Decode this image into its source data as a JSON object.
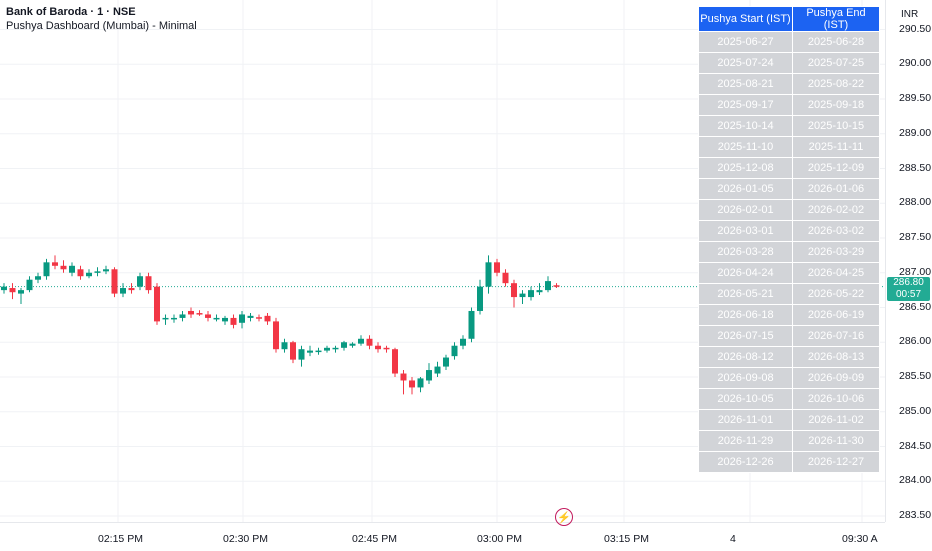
{
  "legend": {
    "symbol": "Bank of Baroda · 1 · NSE",
    "indicator": "Pushya Dashboard (Mumbai) - Minimal"
  },
  "price_axis": {
    "currency": "INR",
    "ticks": [
      "290.50",
      "290.00",
      "289.50",
      "289.00",
      "288.50",
      "288.00",
      "287.50",
      "287.00",
      "286.50",
      "286.00",
      "285.50",
      "285.00",
      "284.50",
      "284.00",
      "283.50"
    ],
    "last_price": "286.80",
    "countdown": "00:57"
  },
  "time_axis": {
    "ticks": [
      "02:15 PM",
      "02:30 PM",
      "02:45 PM",
      "03:00 PM",
      "03:15 PM",
      "4",
      "09:30 A"
    ]
  },
  "table": {
    "headers": [
      "Pushya Start (IST)",
      "Pushya End (IST)"
    ],
    "rows": [
      [
        "2025-06-27",
        "2025-06-28"
      ],
      [
        "2025-07-24",
        "2025-07-25"
      ],
      [
        "2025-08-21",
        "2025-08-22"
      ],
      [
        "2025-09-17",
        "2025-09-18"
      ],
      [
        "2025-10-14",
        "2025-10-15"
      ],
      [
        "2025-11-10",
        "2025-11-11"
      ],
      [
        "2025-12-08",
        "2025-12-09"
      ],
      [
        "2026-01-05",
        "2026-01-06"
      ],
      [
        "2026-02-01",
        "2026-02-02"
      ],
      [
        "2026-03-01",
        "2026-03-02"
      ],
      [
        "2026-03-28",
        "2026-03-29"
      ],
      [
        "2026-04-24",
        "2026-04-25"
      ],
      [
        "2026-05-21",
        "2026-05-22"
      ],
      [
        "2026-06-18",
        "2026-06-19"
      ],
      [
        "2026-07-15",
        "2026-07-16"
      ],
      [
        "2026-08-12",
        "2026-08-13"
      ],
      [
        "2026-09-08",
        "2026-09-09"
      ],
      [
        "2026-10-05",
        "2026-10-06"
      ],
      [
        "2026-11-01",
        "2026-11-02"
      ],
      [
        "2026-11-29",
        "2026-11-30"
      ],
      [
        "2026-12-26",
        "2026-12-27"
      ]
    ]
  },
  "colors": {
    "up": "#089981",
    "down": "#f23645",
    "last_price": "#22ab94",
    "table_header": "#1c63f2",
    "table_cell": "#d2d4d8"
  },
  "icons": {
    "replay": "lightning-icon"
  },
  "chart_data": {
    "type": "candlestick",
    "last_price": 286.8,
    "candles": [
      {
        "o": 286.75,
        "h": 286.85,
        "l": 286.7,
        "c": 286.8
      },
      {
        "o": 286.78,
        "h": 286.85,
        "l": 286.62,
        "c": 286.72
      },
      {
        "o": 286.7,
        "h": 286.78,
        "l": 286.55,
        "c": 286.75
      },
      {
        "o": 286.75,
        "h": 286.95,
        "l": 286.72,
        "c": 286.9
      },
      {
        "o": 286.9,
        "h": 287.0,
        "l": 286.85,
        "c": 286.95
      },
      {
        "o": 286.95,
        "h": 287.2,
        "l": 286.9,
        "c": 287.15
      },
      {
        "o": 287.15,
        "h": 287.25,
        "l": 287.05,
        "c": 287.1
      },
      {
        "o": 287.1,
        "h": 287.18,
        "l": 287.0,
        "c": 287.05
      },
      {
        "o": 287.0,
        "h": 287.15,
        "l": 286.95,
        "c": 287.1
      },
      {
        "o": 287.05,
        "h": 287.1,
        "l": 286.9,
        "c": 286.95
      },
      {
        "o": 286.95,
        "h": 287.05,
        "l": 286.92,
        "c": 287.0
      },
      {
        "o": 287.0,
        "h": 287.08,
        "l": 286.95,
        "c": 287.02
      },
      {
        "o": 287.02,
        "h": 287.1,
        "l": 286.98,
        "c": 287.05
      },
      {
        "o": 287.05,
        "h": 287.08,
        "l": 286.65,
        "c": 286.7
      },
      {
        "o": 286.7,
        "h": 286.85,
        "l": 286.65,
        "c": 286.78
      },
      {
        "o": 286.78,
        "h": 286.85,
        "l": 286.7,
        "c": 286.75
      },
      {
        "o": 286.8,
        "h": 287.0,
        "l": 286.75,
        "c": 286.95
      },
      {
        "o": 286.95,
        "h": 287.0,
        "l": 286.7,
        "c": 286.75
      },
      {
        "o": 286.8,
        "h": 286.85,
        "l": 286.25,
        "c": 286.3
      },
      {
        "o": 286.35,
        "h": 286.4,
        "l": 286.25,
        "c": 286.35
      },
      {
        "o": 286.35,
        "h": 286.4,
        "l": 286.28,
        "c": 286.35
      },
      {
        "o": 286.35,
        "h": 286.45,
        "l": 286.3,
        "c": 286.4
      },
      {
        "o": 286.45,
        "h": 286.5,
        "l": 286.35,
        "c": 286.4
      },
      {
        "o": 286.42,
        "h": 286.46,
        "l": 286.38,
        "c": 286.4
      },
      {
        "o": 286.4,
        "h": 286.45,
        "l": 286.3,
        "c": 286.35
      },
      {
        "o": 286.35,
        "h": 286.4,
        "l": 286.3,
        "c": 286.35
      },
      {
        "o": 286.3,
        "h": 286.38,
        "l": 286.25,
        "c": 286.35
      },
      {
        "o": 286.35,
        "h": 286.4,
        "l": 286.2,
        "c": 286.25
      },
      {
        "o": 286.28,
        "h": 286.45,
        "l": 286.2,
        "c": 286.4
      },
      {
        "o": 286.35,
        "h": 286.42,
        "l": 286.3,
        "c": 286.38
      },
      {
        "o": 286.36,
        "h": 286.4,
        "l": 286.3,
        "c": 286.35
      },
      {
        "o": 286.38,
        "h": 286.42,
        "l": 286.25,
        "c": 286.3
      },
      {
        "o": 286.3,
        "h": 286.35,
        "l": 285.85,
        "c": 285.9
      },
      {
        "o": 285.9,
        "h": 286.05,
        "l": 285.85,
        "c": 286.0
      },
      {
        "o": 286.0,
        "h": 286.02,
        "l": 285.7,
        "c": 285.75
      },
      {
        "o": 285.75,
        "h": 285.95,
        "l": 285.65,
        "c": 285.9
      },
      {
        "o": 285.85,
        "h": 285.95,
        "l": 285.8,
        "c": 285.88
      },
      {
        "o": 285.86,
        "h": 285.92,
        "l": 285.82,
        "c": 285.88
      },
      {
        "o": 285.88,
        "h": 285.95,
        "l": 285.85,
        "c": 285.92
      },
      {
        "o": 285.9,
        "h": 285.95,
        "l": 285.85,
        "c": 285.92
      },
      {
        "o": 285.92,
        "h": 286.02,
        "l": 285.88,
        "c": 286.0
      },
      {
        "o": 285.95,
        "h": 286.0,
        "l": 285.92,
        "c": 285.98
      },
      {
        "o": 285.98,
        "h": 286.1,
        "l": 285.95,
        "c": 286.05
      },
      {
        "o": 286.05,
        "h": 286.1,
        "l": 285.9,
        "c": 285.95
      },
      {
        "o": 285.95,
        "h": 286.0,
        "l": 285.85,
        "c": 285.9
      },
      {
        "o": 285.92,
        "h": 285.95,
        "l": 285.85,
        "c": 285.9
      },
      {
        "o": 285.9,
        "h": 285.92,
        "l": 285.5,
        "c": 285.55
      },
      {
        "o": 285.55,
        "h": 285.6,
        "l": 285.25,
        "c": 285.45
      },
      {
        "o": 285.45,
        "h": 285.5,
        "l": 285.25,
        "c": 285.35
      },
      {
        "o": 285.35,
        "h": 285.5,
        "l": 285.28,
        "c": 285.48
      },
      {
        "o": 285.45,
        "h": 285.7,
        "l": 285.4,
        "c": 285.6
      },
      {
        "o": 285.55,
        "h": 285.72,
        "l": 285.5,
        "c": 285.65
      },
      {
        "o": 285.65,
        "h": 285.82,
        "l": 285.6,
        "c": 285.78
      },
      {
        "o": 285.8,
        "h": 286.0,
        "l": 285.75,
        "c": 285.95
      },
      {
        "o": 285.95,
        "h": 286.1,
        "l": 285.9,
        "c": 286.05
      },
      {
        "o": 286.05,
        "h": 286.5,
        "l": 286.0,
        "c": 286.45
      },
      {
        "o": 286.45,
        "h": 286.9,
        "l": 286.4,
        "c": 286.8
      },
      {
        "o": 286.8,
        "h": 287.25,
        "l": 286.7,
        "c": 287.15
      },
      {
        "o": 287.15,
        "h": 287.2,
        "l": 286.95,
        "c": 287.0
      },
      {
        "o": 287.0,
        "h": 287.05,
        "l": 286.8,
        "c": 286.85
      },
      {
        "o": 286.85,
        "h": 286.9,
        "l": 286.5,
        "c": 286.65
      },
      {
        "o": 286.65,
        "h": 286.75,
        "l": 286.55,
        "c": 286.7
      },
      {
        "o": 286.65,
        "h": 286.8,
        "l": 286.6,
        "c": 286.75
      },
      {
        "o": 286.72,
        "h": 286.85,
        "l": 286.68,
        "c": 286.75
      },
      {
        "o": 286.75,
        "h": 286.95,
        "l": 286.72,
        "c": 286.88
      },
      {
        "o": 286.82,
        "h": 286.85,
        "l": 286.78,
        "c": 286.8
      }
    ]
  }
}
